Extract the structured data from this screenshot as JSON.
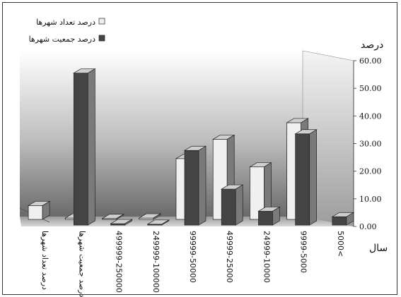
{
  "chart_data": {
    "type": "bar",
    "bar_mode": "3d-clustered",
    "ylabel": "درصد",
    "xlabel": "سال",
    "ylim": [
      0,
      60
    ],
    "y_ticks": [
      "0.00",
      "10.00",
      "20.00",
      "30.00",
      "40.00",
      "50.00",
      "60.00"
    ],
    "categories": [
      "درصد تعداد شهرها",
      "درصد جمعیت شهرها",
      "499999-250000",
      "249999-100000",
      "99999-50000",
      "49999-25000",
      "24999-10000",
      "9999-5000",
      "5000<"
    ],
    "series": [
      {
        "name": "درصد تعداد شهرها",
        "color": "#f0f0f0",
        "values": [
          5,
          0.5,
          0.3,
          0.5,
          22,
          29,
          19,
          35,
          0
        ]
      },
      {
        "name": "درصد جمعیت شهرها",
        "color": "#444444",
        "values": [
          0,
          55,
          0.5,
          0.3,
          27,
          13,
          5,
          33,
          3
        ]
      }
    ],
    "legend_position": "top-left",
    "grid": false
  }
}
